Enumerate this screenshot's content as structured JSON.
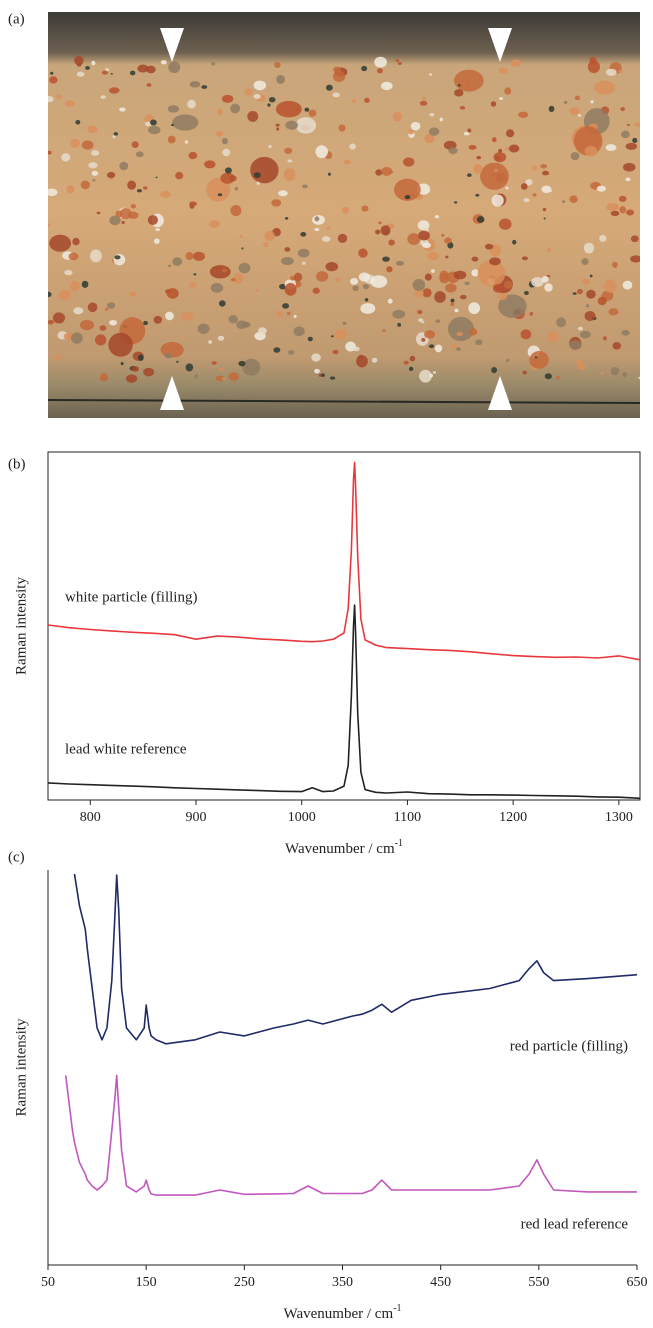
{
  "photo": {
    "label": "(a)"
  },
  "chart_data": [
    {
      "type": "line",
      "label": "(b)",
      "ylabel": "Raman intensity",
      "xlabel": "Wavenumber / cm",
      "xlabel_superscript": "-1",
      "frame": true,
      "xlim": [
        760,
        1320
      ],
      "xticks": [
        800,
        900,
        1000,
        1100,
        1200,
        1300
      ],
      "ylim": [
        0,
        100
      ],
      "x": [
        760,
        780,
        800,
        820,
        840,
        860,
        880,
        900,
        920,
        940,
        960,
        980,
        1000,
        1010,
        1020,
        1030,
        1040,
        1044,
        1047,
        1049,
        1050,
        1051,
        1053,
        1056,
        1060,
        1070,
        1080,
        1100,
        1120,
        1140,
        1160,
        1180,
        1200,
        1220,
        1240,
        1260,
        1280,
        1300,
        1320
      ],
      "series": [
        {
          "name": "white particle (filling)",
          "color": "#e8383d",
          "values": [
            50.3,
            49.5,
            49,
            48.6,
            48.2,
            47.9,
            47.5,
            46.2,
            47.1,
            46.8,
            46.3,
            46.0,
            45.6,
            45.5,
            45.7,
            46.2,
            48,
            55,
            72,
            92,
            97,
            90,
            70,
            52,
            46,
            44.5,
            43.8,
            43.5,
            43.2,
            43,
            42.6,
            42,
            41.5,
            41.2,
            41,
            41.1,
            40.8,
            41.4,
            40.3
          ]
        },
        {
          "name": "lead white reference",
          "color": "#222222",
          "values": [
            4.9,
            4.6,
            4.4,
            4.2,
            4.0,
            3.8,
            3.5,
            3.3,
            3.1,
            2.9,
            2.7,
            2.5,
            2.4,
            3.5,
            2.4,
            2.6,
            4,
            10,
            30,
            50,
            56,
            48,
            25,
            8,
            3,
            2.2,
            2,
            2.3,
            1.8,
            1.7,
            1.5,
            1.5,
            1.4,
            1.3,
            1.2,
            1.1,
            0.9,
            0.8,
            0.5
          ]
        }
      ]
    },
    {
      "type": "line",
      "label": "(c)",
      "ylabel": "Raman intensity",
      "xlabel": "Wavenumber / cm",
      "xlabel_superscript": "-1",
      "frame": false,
      "xlim": [
        50,
        650
      ],
      "xticks": [
        50,
        150,
        250,
        350,
        450,
        550,
        650
      ],
      "ylim": [
        0,
        100
      ],
      "x": [
        68,
        75,
        77,
        82,
        88,
        90,
        95,
        100,
        105,
        110,
        115,
        118,
        120,
        122,
        125,
        130,
        140,
        148,
        150,
        153,
        155,
        160,
        170,
        200,
        225,
        250,
        280,
        300,
        315,
        330,
        360,
        370,
        380,
        390,
        400,
        420,
        450,
        500,
        530,
        540,
        548,
        555,
        565,
        600,
        650
      ],
      "series": [
        {
          "name": "red particle (filling)",
          "color": "#1f2a66",
          "values": [
            null,
            null,
            99,
            91,
            85,
            80,
            70,
            60,
            57,
            60,
            72,
            88,
            98.7,
            90,
            70,
            60,
            57,
            60,
            65.8,
            60,
            58,
            57,
            56,
            57,
            59,
            58,
            60,
            61,
            62,
            61,
            63,
            63.5,
            64.5,
            66,
            64,
            67,
            68.5,
            70,
            72,
            75,
            77,
            74,
            72,
            72.5,
            73.5
          ]
        },
        {
          "name": "red lead reference",
          "color": "#c257be",
          "values": [
            48,
            34,
            31,
            26,
            23,
            21.5,
            20,
            19,
            20,
            21.5,
            34,
            42,
            48,
            40,
            29,
            20,
            18.5,
            20,
            21.5,
            19,
            18,
            17.7,
            17.7,
            17.7,
            19,
            17.9,
            18,
            18.1,
            20,
            18.1,
            18.1,
            18.1,
            19,
            21.5,
            19,
            19,
            19,
            19,
            20,
            23,
            26.6,
            23,
            19,
            18.5,
            18.5
          ]
        }
      ]
    }
  ]
}
